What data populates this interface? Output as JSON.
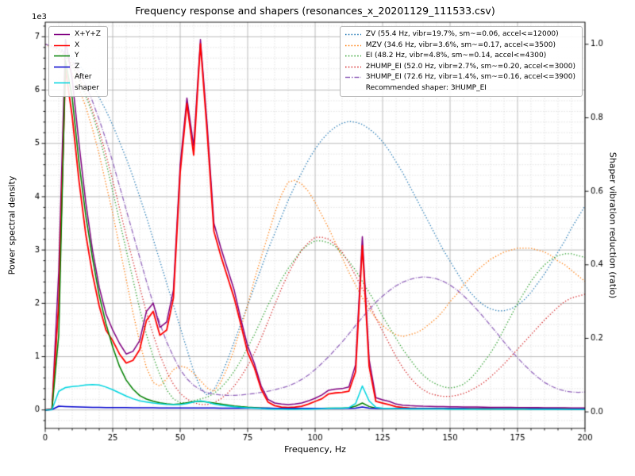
{
  "chart_data": {
    "type": "line",
    "title": "Frequency response and shapers (resonances_x_20201129_111533.csv)",
    "xlabel": "Frequency, Hz",
    "ylabel_left": "Power spectral density",
    "ylabel_right": "Shaper vibration reduction (ratio)",
    "y_left_offset_label": "1e3",
    "axes": {
      "x": [
        0,
        200
      ],
      "y_left": [
        -346,
        7273
      ],
      "y_right": [
        -0.045,
        1.06
      ]
    },
    "x_tick_values": [
      0,
      25,
      50,
      75,
      100,
      125,
      150,
      175,
      200
    ],
    "x_tick_labels": [
      "0",
      "25",
      "50",
      "75",
      "100",
      "125",
      "150",
      "175",
      "200"
    ],
    "y_left_tick_values": [
      0,
      1000,
      2000,
      3000,
      4000,
      5000,
      6000,
      7000
    ],
    "y_left_tick_labels": [
      "0",
      "1",
      "2",
      "3",
      "4",
      "5",
      "6",
      "7"
    ],
    "y_right_tick_values": [
      0,
      0.2,
      0.4,
      0.6,
      0.8,
      1.0
    ],
    "y_right_tick_labels": [
      "0.0",
      "0.2",
      "0.4",
      "0.6",
      "0.8",
      "1.0"
    ],
    "grid": {
      "x_minor_step": 5,
      "y_minor_step": 200,
      "major_color": "#ababab",
      "minor_color": "#d7d7d7"
    },
    "x": [
      0,
      2.5,
      5,
      7.5,
      10,
      12.5,
      15,
      17.5,
      20,
      22.5,
      25,
      27.5,
      30,
      32.5,
      35,
      37.5,
      40,
      42.5,
      45,
      47.5,
      50,
      52.5,
      55,
      57.5,
      60,
      62.5,
      65,
      67.5,
      70,
      72.5,
      75,
      77.5,
      80,
      82.5,
      85,
      87.5,
      90,
      92.5,
      95,
      97.5,
      100,
      102.5,
      105,
      107.5,
      110,
      112.5,
      115,
      117.5,
      120,
      122.5,
      125,
      127.5,
      130,
      132.5,
      135,
      137.5,
      140,
      142.5,
      145,
      147.5,
      150,
      152.5,
      155,
      157.5,
      160,
      162.5,
      165,
      167.5,
      170,
      172.5,
      175,
      177.5,
      180,
      182.5,
      185,
      187.5,
      190,
      192.5,
      195,
      197.5,
      200
    ],
    "psd_series": [
      {
        "name": "X+Y+Z",
        "color": "#800080",
        "linestyle": "solid",
        "values": [
          0,
          20,
          2600,
          6950,
          6200,
          5000,
          3900,
          3000,
          2300,
          1800,
          1500,
          1250,
          1050,
          1100,
          1300,
          1850,
          2000,
          1550,
          1650,
          2250,
          4600,
          5850,
          4950,
          6950,
          5350,
          3500,
          3050,
          2650,
          2250,
          1700,
          1200,
          870,
          450,
          200,
          130,
          110,
          100,
          110,
          130,
          170,
          220,
          280,
          370,
          390,
          400,
          430,
          850,
          3250,
          950,
          230,
          190,
          160,
          110,
          90,
          80,
          75,
          70,
          68,
          65,
          63,
          60,
          58,
          56,
          55,
          54,
          52,
          50,
          49,
          48,
          47,
          46,
          45,
          44,
          43,
          42,
          41,
          40,
          40,
          39,
          38,
          38
        ]
      },
      {
        "name": "X",
        "color": "#ff0000",
        "linestyle": "solid",
        "values": [
          0,
          15,
          2000,
          6400,
          5500,
          4300,
          3300,
          2550,
          1950,
          1500,
          1300,
          1050,
          880,
          930,
          1130,
          1680,
          1850,
          1400,
          1500,
          2100,
          4450,
          5750,
          4780,
          6870,
          5200,
          3350,
          2900,
          2500,
          2100,
          1600,
          1080,
          790,
          390,
          150,
          80,
          55,
          45,
          55,
          70,
          110,
          160,
          210,
          300,
          320,
          330,
          350,
          720,
          3080,
          820,
          160,
          130,
          100,
          60,
          45,
          35,
          30,
          28,
          27,
          26,
          25,
          25,
          24,
          24,
          23,
          23,
          22,
          22,
          21,
          21,
          21,
          20,
          20,
          20,
          20,
          19,
          19,
          19,
          19,
          18,
          18,
          18
        ]
      },
      {
        "name": "Y",
        "color": "#008000",
        "linestyle": "solid",
        "values": [
          0,
          12,
          1400,
          6550,
          5850,
          4650,
          3650,
          2850,
          2150,
          1620,
          1180,
          820,
          560,
          390,
          270,
          205,
          165,
          135,
          115,
          105,
          115,
          135,
          155,
          165,
          150,
          130,
          110,
          92,
          75,
          62,
          52,
          45,
          38,
          33,
          30,
          28,
          27,
          26,
          26,
          27,
          28,
          30,
          32,
          33,
          35,
          40,
          70,
          130,
          65,
          35,
          30,
          28,
          25,
          24,
          23,
          22,
          22,
          21,
          21,
          21,
          20,
          20,
          20,
          20,
          19,
          19,
          19,
          19,
          18,
          18,
          18,
          18,
          18,
          17,
          17,
          17,
          17,
          17,
          16,
          16,
          16
        ]
      },
      {
        "name": "Z",
        "color": "#0000cd",
        "linestyle": "solid",
        "values": [
          0,
          8,
          70,
          65,
          60,
          55,
          52,
          50,
          48,
          46,
          45,
          44,
          43,
          42,
          41,
          40,
          40,
          39,
          39,
          38,
          38,
          38,
          37,
          37,
          36,
          36,
          35,
          35,
          34,
          34,
          33,
          33,
          32,
          32,
          31,
          31,
          30,
          30,
          30,
          30,
          30,
          30,
          30,
          30,
          30,
          31,
          35,
          55,
          33,
          30,
          29,
          29,
          28,
          28,
          27,
          27,
          27,
          26,
          26,
          26,
          25,
          25,
          25,
          24,
          24,
          24,
          23,
          23,
          23,
          22,
          22,
          22,
          22,
          21,
          21,
          21,
          21,
          20,
          20,
          20,
          20
        ]
      },
      {
        "name": "After\nshaper",
        "color": "#00d5e0",
        "linestyle": "solid",
        "values": [
          0,
          5,
          350,
          420,
          440,
          450,
          470,
          475,
          470,
          430,
          380,
          320,
          260,
          210,
          170,
          150,
          130,
          115,
          105,
          100,
          100,
          120,
          150,
          170,
          150,
          110,
          90,
          75,
          60,
          50,
          40,
          35,
          25,
          20,
          16,
          14,
          13,
          13,
          14,
          15,
          18,
          22,
          28,
          32,
          35,
          42,
          120,
          450,
          170,
          50,
          35,
          30,
          25,
          22,
          20,
          19,
          18,
          18,
          17,
          17,
          16,
          16,
          16,
          15,
          15,
          15,
          15,
          14,
          14,
          14,
          14,
          14,
          13,
          13,
          13,
          13,
          13,
          13,
          12,
          12,
          12
        ]
      }
    ],
    "shaper_series": [
      {
        "name": "ZV",
        "label": "ZV (55.4 Hz, vibr=19.7%, sm~=0.06, accel<=12000)",
        "color": "#1f77b4",
        "linestyle": "dotted",
        "values": [
          1.0,
          0.995,
          0.99,
          0.98,
          0.965,
          0.945,
          0.92,
          0.89,
          0.855,
          0.82,
          0.78,
          0.735,
          0.69,
          0.64,
          0.585,
          0.53,
          0.47,
          0.41,
          0.35,
          0.29,
          0.23,
          0.17,
          0.11,
          0.065,
          0.045,
          0.06,
          0.095,
          0.14,
          0.19,
          0.24,
          0.29,
          0.34,
          0.39,
          0.44,
          0.485,
          0.53,
          0.575,
          0.615,
          0.65,
          0.685,
          0.715,
          0.74,
          0.76,
          0.775,
          0.785,
          0.79,
          0.788,
          0.782,
          0.77,
          0.755,
          0.735,
          0.71,
          0.68,
          0.65,
          0.615,
          0.58,
          0.545,
          0.51,
          0.475,
          0.44,
          0.41,
          0.38,
          0.35,
          0.325,
          0.305,
          0.29,
          0.28,
          0.275,
          0.275,
          0.28,
          0.29,
          0.305,
          0.325,
          0.35,
          0.375,
          0.405,
          0.435,
          0.465,
          0.5,
          0.53,
          0.56
        ]
      },
      {
        "name": "MZV",
        "label": "MZV (34.6 Hz, vibr=3.6%, sm~=0.17, accel<=3500)",
        "color": "#ff7f0e",
        "linestyle": "dotted",
        "values": [
          1.0,
          0.99,
          0.975,
          0.95,
          0.92,
          0.88,
          0.83,
          0.77,
          0.7,
          0.62,
          0.54,
          0.45,
          0.36,
          0.27,
          0.19,
          0.12,
          0.08,
          0.07,
          0.09,
          0.115,
          0.125,
          0.12,
          0.105,
          0.085,
          0.065,
          0.055,
          0.08,
          0.12,
          0.17,
          0.23,
          0.29,
          0.36,
          0.42,
          0.48,
          0.54,
          0.59,
          0.625,
          0.63,
          0.62,
          0.6,
          0.57,
          0.535,
          0.5,
          0.46,
          0.42,
          0.38,
          0.345,
          0.31,
          0.28,
          0.255,
          0.235,
          0.22,
          0.21,
          0.205,
          0.21,
          0.215,
          0.225,
          0.24,
          0.255,
          0.275,
          0.3,
          0.32,
          0.345,
          0.365,
          0.385,
          0.4,
          0.415,
          0.425,
          0.435,
          0.44,
          0.445,
          0.445,
          0.445,
          0.44,
          0.435,
          0.425,
          0.41,
          0.4,
          0.385,
          0.37,
          0.355
        ]
      },
      {
        "name": "EI",
        "label": "EI (48.2 Hz, vibr=4.8%, sm~=0.14, accel<=4300)",
        "color": "#2ca02c",
        "linestyle": "dotted",
        "values": [
          1.0,
          0.995,
          0.985,
          0.965,
          0.94,
          0.905,
          0.86,
          0.81,
          0.75,
          0.68,
          0.6,
          0.52,
          0.44,
          0.36,
          0.28,
          0.21,
          0.15,
          0.1,
          0.06,
          0.035,
          0.025,
          0.025,
          0.03,
          0.035,
          0.04,
          0.05,
          0.065,
          0.085,
          0.11,
          0.14,
          0.175,
          0.21,
          0.25,
          0.29,
          0.325,
          0.36,
          0.39,
          0.415,
          0.44,
          0.455,
          0.465,
          0.465,
          0.46,
          0.45,
          0.43,
          0.41,
          0.385,
          0.355,
          0.325,
          0.295,
          0.26,
          0.23,
          0.2,
          0.17,
          0.145,
          0.12,
          0.1,
          0.085,
          0.075,
          0.068,
          0.065,
          0.068,
          0.075,
          0.09,
          0.11,
          0.135,
          0.16,
          0.19,
          0.225,
          0.26,
          0.295,
          0.325,
          0.355,
          0.38,
          0.4,
          0.415,
          0.425,
          0.43,
          0.43,
          0.425,
          0.42
        ]
      },
      {
        "name": "2HUMP_EI",
        "label": "2HUMP_EI (52.0 Hz, vibr=2.7%, sm~=0.20, accel<=3000)",
        "color": "#d62728",
        "linestyle": "dotted",
        "values": [
          1.0,
          0.995,
          0.985,
          0.97,
          0.945,
          0.91,
          0.87,
          0.82,
          0.765,
          0.7,
          0.63,
          0.555,
          0.48,
          0.41,
          0.34,
          0.27,
          0.21,
          0.155,
          0.11,
          0.075,
          0.05,
          0.035,
          0.025,
          0.02,
          0.02,
          0.025,
          0.035,
          0.05,
          0.07,
          0.095,
          0.125,
          0.16,
          0.2,
          0.245,
          0.29,
          0.335,
          0.375,
          0.41,
          0.44,
          0.46,
          0.475,
          0.475,
          0.47,
          0.455,
          0.435,
          0.405,
          0.37,
          0.335,
          0.295,
          0.255,
          0.22,
          0.185,
          0.15,
          0.12,
          0.095,
          0.075,
          0.06,
          0.05,
          0.045,
          0.042,
          0.042,
          0.045,
          0.05,
          0.058,
          0.068,
          0.08,
          0.095,
          0.112,
          0.13,
          0.15,
          0.17,
          0.19,
          0.21,
          0.23,
          0.25,
          0.268,
          0.285,
          0.3,
          0.31,
          0.315,
          0.32
        ]
      },
      {
        "name": "3HUMP_EI",
        "label": "3HUMP_EI (72.6 Hz, vibr=1.4%, sm~=0.16, accel<=3900)",
        "color": "#9467bd",
        "linestyle": "dashdot",
        "values": [
          1.0,
          0.995,
          0.99,
          0.975,
          0.955,
          0.925,
          0.89,
          0.845,
          0.795,
          0.74,
          0.68,
          0.615,
          0.55,
          0.485,
          0.42,
          0.355,
          0.295,
          0.24,
          0.19,
          0.15,
          0.115,
          0.09,
          0.072,
          0.06,
          0.052,
          0.048,
          0.046,
          0.045,
          0.045,
          0.046,
          0.048,
          0.05,
          0.053,
          0.056,
          0.06,
          0.065,
          0.07,
          0.078,
          0.088,
          0.1,
          0.115,
          0.132,
          0.15,
          0.17,
          0.19,
          0.212,
          0.235,
          0.257,
          0.278,
          0.298,
          0.315,
          0.33,
          0.343,
          0.353,
          0.36,
          0.365,
          0.367,
          0.366,
          0.362,
          0.355,
          0.345,
          0.332,
          0.316,
          0.298,
          0.278,
          0.257,
          0.235,
          0.213,
          0.19,
          0.168,
          0.147,
          0.128,
          0.11,
          0.094,
          0.08,
          0.07,
          0.062,
          0.057,
          0.054,
          0.053,
          0.054
        ]
      }
    ],
    "recommended_label": "Recommended shaper: 3HUMP_EI"
  }
}
